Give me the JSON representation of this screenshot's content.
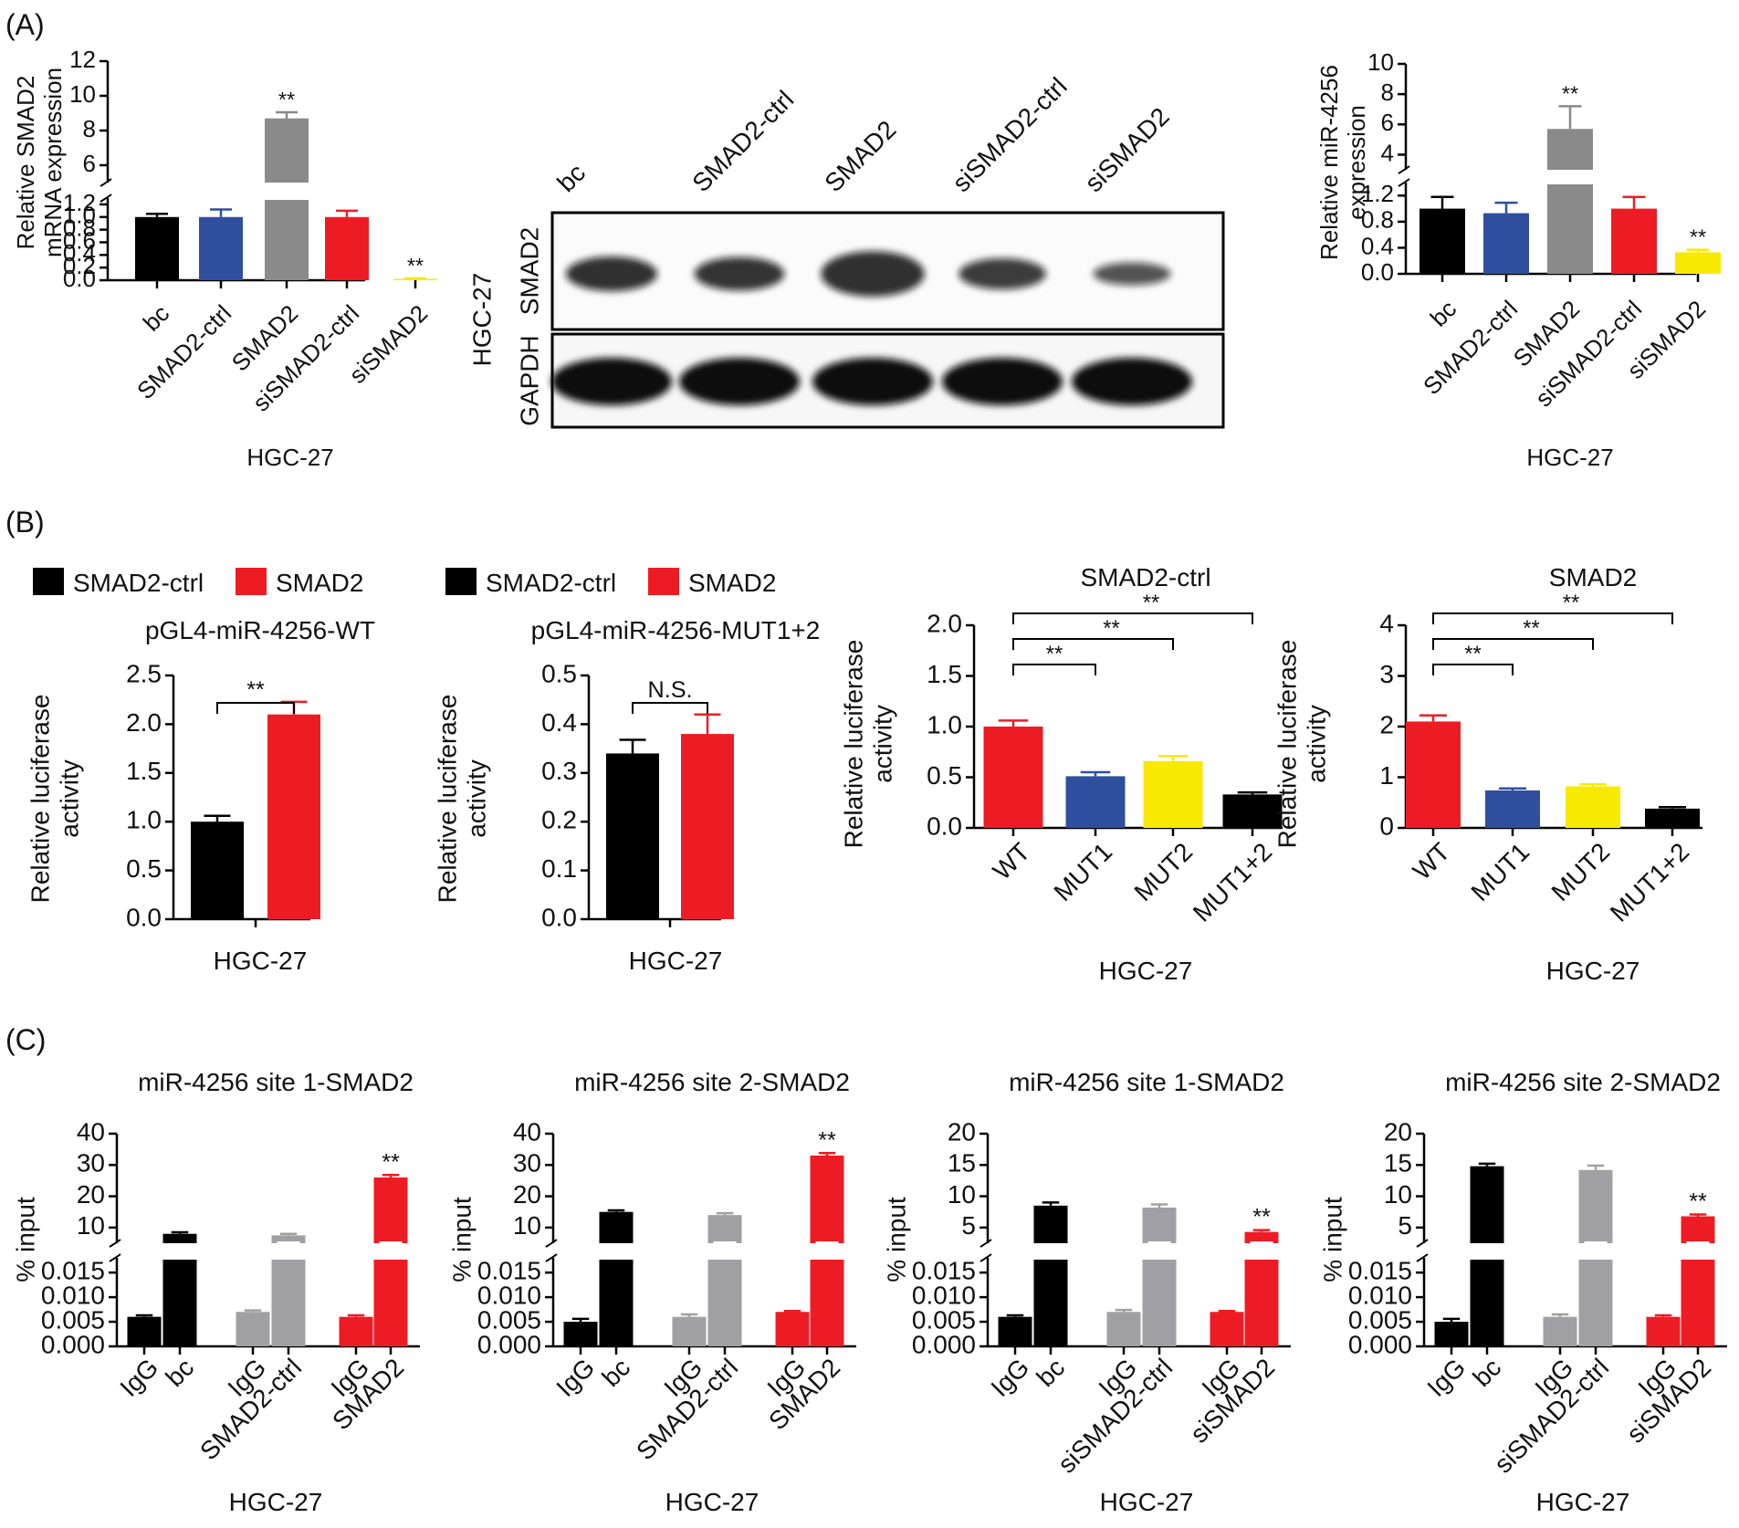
{
  "colors": {
    "black": "#000000",
    "blue": "#2f4f9e",
    "gray": "#8a8a8a",
    "lightgray": "#a0a0a4",
    "red": "#ed1c24",
    "yellow": "#f7ea00"
  },
  "panels": {
    "A": "(A)",
    "B": "(B)",
    "C": "(C)"
  },
  "blot": {
    "lanes": [
      "bc",
      "SMAD2-ctrl",
      "SMAD2",
      "siSMAD2-ctrl",
      "siSMAD2"
    ],
    "cell": "HGC-27",
    "rows": [
      "SMAD2",
      "GAPDH"
    ],
    "smad2_intensity": [
      1.0,
      0.95,
      1.45,
      0.85,
      0.5
    ],
    "gapdh_intensity": [
      1.0,
      1.0,
      1.0,
      1.0,
      1.0
    ]
  },
  "legends": {
    "b1": {
      "s1": "SMAD2-ctrl",
      "s2": "SMAD2"
    },
    "b2": {
      "s1": "SMAD2-ctrl",
      "s2": "SMAD2"
    }
  },
  "chart_data": [
    {
      "id": "a1",
      "type": "bar",
      "title": "",
      "ylabel": [
        "Relative SMAD2",
        "mRNA expression"
      ],
      "xlabel": "HGC-27",
      "categories": [
        "bc",
        "SMAD2-ctrl",
        "SMAD2",
        "siSMAD2-ctrl",
        "siSMAD2"
      ],
      "values": [
        1.0,
        1.0,
        8.7,
        1.0,
        0.02
      ],
      "errors": [
        0.05,
        0.12,
        0.35,
        0.1,
        0.01
      ],
      "colors": [
        "black",
        "blue",
        "gray",
        "red",
        "yellow"
      ],
      "stars": [
        "",
        "",
        "**",
        "",
        "**"
      ],
      "ylim": [
        0,
        12
      ],
      "axis_break": [
        1.3,
        5
      ],
      "yticks_lower": [
        "0.0",
        "0.2",
        "0.4",
        "0.6",
        "0.8",
        "1.0",
        "1.2"
      ],
      "yticks_upper": [
        "6",
        "8",
        "10",
        "12"
      ]
    },
    {
      "id": "a2",
      "type": "bar",
      "title": "",
      "ylabel": [
        "Relative miR-4256",
        "expression"
      ],
      "xlabel": "HGC-27",
      "categories": [
        "bc",
        "SMAD2-ctrl",
        "SMAD2",
        "siSMAD2-ctrl",
        "siSMAD2"
      ],
      "values": [
        1.0,
        0.93,
        5.7,
        1.0,
        0.33
      ],
      "errors": [
        0.18,
        0.16,
        1.5,
        0.18,
        0.04
      ],
      "colors": [
        "black",
        "blue",
        "gray",
        "red",
        "yellow"
      ],
      "stars": [
        "",
        "",
        "**",
        "",
        "**"
      ],
      "ylim": [
        0,
        10
      ],
      "axis_break": [
        1.4,
        3
      ],
      "yticks_lower": [
        "0.0",
        "0.4",
        "0.8",
        "1.2"
      ],
      "yticks_upper": [
        "4",
        "6",
        "8",
        "10"
      ]
    },
    {
      "id": "b1",
      "type": "bar",
      "title": "pGL4-miR-4256-WT",
      "ylabel": [
        "Relative luciferase",
        "activity"
      ],
      "xlabel": "HGC-27",
      "categories": [
        "SMAD2-ctrl",
        "SMAD2"
      ],
      "values": [
        1.0,
        2.1
      ],
      "errors": [
        0.06,
        0.13
      ],
      "colors": [
        "black",
        "red"
      ],
      "ylim": [
        0,
        2.5
      ],
      "yticks": [
        "0.0",
        "0.5",
        "1.0",
        "1.5",
        "2.0",
        "2.5"
      ],
      "bracket_label": "**"
    },
    {
      "id": "b2",
      "type": "bar",
      "title": "pGL4-miR-4256-MUT1+2",
      "ylabel": [
        "Relative luciferase",
        "activity"
      ],
      "xlabel": "HGC-27",
      "categories": [
        "SMAD2-ctrl",
        "SMAD2"
      ],
      "values": [
        0.34,
        0.38
      ],
      "errors": [
        0.028,
        0.04
      ],
      "colors": [
        "black",
        "red"
      ],
      "ylim": [
        0,
        0.5
      ],
      "yticks": [
        "0.0",
        "0.1",
        "0.2",
        "0.3",
        "0.4",
        "0.5"
      ],
      "bracket_label": "N.S."
    },
    {
      "id": "b3",
      "type": "bar",
      "title": "SMAD2-ctrl",
      "ylabel": [
        "Relative luciferase",
        "activity"
      ],
      "xlabel": "HGC-27",
      "categories": [
        "WT",
        "MUT1",
        "MUT2",
        "MUT1+2"
      ],
      "values": [
        1.0,
        0.51,
        0.66,
        0.33
      ],
      "errors": [
        0.06,
        0.04,
        0.05,
        0.02
      ],
      "colors": [
        "red",
        "blue",
        "yellow",
        "black"
      ],
      "ylim": [
        0,
        2.0
      ],
      "yticks": [
        "0.0",
        "0.5",
        "1.0",
        "1.5",
        "2.0"
      ],
      "comparisons": [
        "**",
        "**",
        "**"
      ]
    },
    {
      "id": "b4",
      "type": "bar",
      "title": "SMAD2",
      "ylabel": [
        "Relative luciferase",
        "activity"
      ],
      "xlabel": "HGC-27",
      "categories": [
        "WT",
        "MUT1",
        "MUT2",
        "MUT1+2"
      ],
      "values": [
        2.1,
        0.74,
        0.82,
        0.38
      ],
      "errors": [
        0.12,
        0.04,
        0.04,
        0.03
      ],
      "colors": [
        "red",
        "blue",
        "yellow",
        "black"
      ],
      "ylim": [
        0,
        4
      ],
      "yticks": [
        "0",
        "1",
        "2",
        "3",
        "4"
      ],
      "comparisons": [
        "**",
        "**",
        "**"
      ]
    },
    {
      "id": "c1",
      "type": "bar",
      "title": "miR-4256 site 1-SMAD2",
      "ylabel": [
        "% input"
      ],
      "xlabel": "HGC-27",
      "categories": [
        "IgG",
        "bc",
        "IgG",
        "SMAD2-ctrl",
        "IgG",
        "SMAD2"
      ],
      "values": [
        0.006,
        8.0,
        0.007,
        7.5,
        0.006,
        26.0
      ],
      "errors": [
        0.0003,
        0.5,
        0.0003,
        0.5,
        0.0003,
        0.8
      ],
      "colors": [
        "black",
        "black",
        "lightgray",
        "lightgray",
        "red",
        "red"
      ],
      "stars": [
        "",
        "",
        "",
        "",
        "",
        "**"
      ],
      "ylim": [
        0,
        40
      ],
      "axis_break": [
        0.018,
        5
      ],
      "yticks_lower": [
        "0.000",
        "0.005",
        "0.010",
        "0.015"
      ],
      "yticks_upper": [
        "10",
        "20",
        "30",
        "40"
      ]
    },
    {
      "id": "c2",
      "type": "bar",
      "title": "miR-4256 site 2-SMAD2",
      "ylabel": [
        "% input"
      ],
      "xlabel": "HGC-27",
      "categories": [
        "IgG",
        "bc",
        "IgG",
        "SMAD2-ctrl",
        "IgG",
        "SMAD2"
      ],
      "values": [
        0.005,
        15.0,
        0.006,
        14.0,
        0.007,
        33.0
      ],
      "errors": [
        0.0006,
        0.5,
        0.0005,
        0.6,
        0.0002,
        0.8
      ],
      "colors": [
        "black",
        "black",
        "lightgray",
        "lightgray",
        "red",
        "red"
      ],
      "stars": [
        "",
        "",
        "",
        "",
        "",
        "**"
      ],
      "ylim": [
        0,
        40
      ],
      "axis_break": [
        0.018,
        5
      ],
      "yticks_lower": [
        "0.000",
        "0.005",
        "0.010",
        "0.015"
      ],
      "yticks_upper": [
        "10",
        "20",
        "30",
        "40"
      ]
    },
    {
      "id": "c3",
      "type": "bar",
      "title": "miR-4256 site 1-SMAD2",
      "ylabel": [
        "% input"
      ],
      "xlabel": "HGC-27",
      "categories": [
        "IgG",
        "bc",
        "IgG",
        "siSMAD2-ctrl",
        "IgG",
        "siSMAD2"
      ],
      "values": [
        0.006,
        8.5,
        0.007,
        8.2,
        0.007,
        4.3
      ],
      "errors": [
        0.0003,
        0.5,
        0.0004,
        0.5,
        0.0002,
        0.3
      ],
      "colors": [
        "black",
        "black",
        "lightgray",
        "lightgray",
        "red",
        "red"
      ],
      "stars": [
        "",
        "",
        "",
        "",
        "",
        "**"
      ],
      "ylim": [
        0,
        20
      ],
      "axis_break": [
        0.018,
        2.5
      ],
      "yticks_lower": [
        "0.000",
        "0.005",
        "0.010",
        "0.015"
      ],
      "yticks_upper": [
        "5",
        "10",
        "15",
        "20"
      ]
    },
    {
      "id": "c4",
      "type": "bar",
      "title": "miR-4256 site 2-SMAD2",
      "ylabel": [
        "% input"
      ],
      "xlabel": "HGC-27",
      "categories": [
        "IgG",
        "bc",
        "IgG",
        "siSMAD2-ctrl",
        "IgG",
        "siSMAD2"
      ],
      "values": [
        0.005,
        14.8,
        0.006,
        14.2,
        0.006,
        6.8
      ],
      "errors": [
        0.0006,
        0.4,
        0.0005,
        0.7,
        0.0003,
        0.3
      ],
      "colors": [
        "black",
        "black",
        "lightgray",
        "lightgray",
        "red",
        "red"
      ],
      "stars": [
        "",
        "",
        "",
        "",
        "",
        "**"
      ],
      "ylim": [
        0,
        20
      ],
      "axis_break": [
        0.018,
        2.5
      ],
      "yticks_lower": [
        "0.000",
        "0.005",
        "0.010",
        "0.015"
      ],
      "yticks_upper": [
        "5",
        "10",
        "15",
        "20"
      ]
    }
  ]
}
